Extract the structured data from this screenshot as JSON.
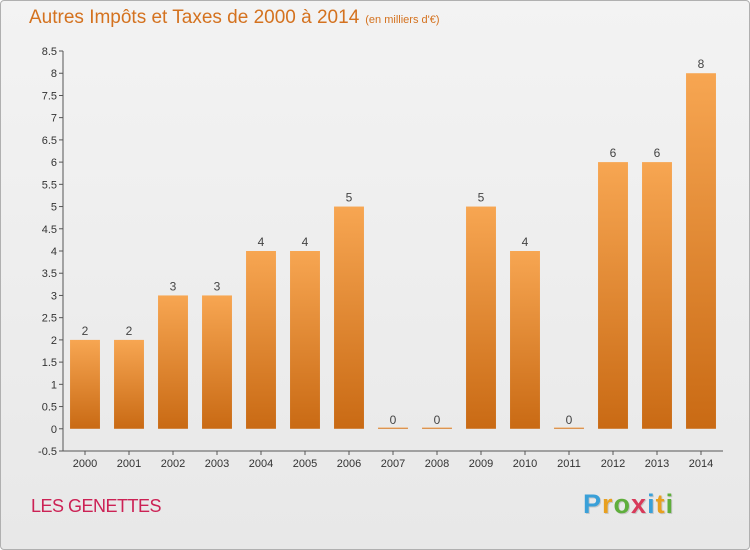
{
  "header": {
    "title": "Autres Impôts et Taxes de 2000 à 2014",
    "subtitle": "(en milliers d'€)"
  },
  "location": "LES GENETTES",
  "logo": {
    "letters": [
      "P",
      "r",
      "o",
      "x",
      "i",
      "t",
      "i"
    ],
    "colors": [
      "#3aa0d8",
      "#e8a020",
      "#5fae3c",
      "#d83a5a",
      "#3aa0d8",
      "#e8a020",
      "#5fae3c"
    ]
  },
  "colors": {
    "bar_top": "#f7a652",
    "bar_bottom": "#c96a14",
    "axis": "#555555",
    "grid": "#bbbbbb",
    "title": "#d4721f"
  },
  "chart_data": {
    "type": "bar",
    "title": "Autres Impôts et Taxes de 2000 à 2014",
    "categories": [
      "2000",
      "2001",
      "2002",
      "2003",
      "2004",
      "2005",
      "2006",
      "2007",
      "2008",
      "2009",
      "2010",
      "2011",
      "2012",
      "2013",
      "2014"
    ],
    "values": [
      2,
      2,
      3,
      3,
      4,
      4,
      5,
      0,
      0,
      5,
      4,
      0,
      6,
      6,
      8
    ],
    "data_labels": [
      "2",
      "2",
      "3",
      "3",
      "4",
      "4",
      "5",
      "0",
      "0",
      "5",
      "4",
      "0",
      "6",
      "6",
      "8"
    ],
    "yticks": [
      "-0.5",
      "0",
      "0.5",
      "1",
      "1.5",
      "2",
      "2.5",
      "3",
      "3.5",
      "4",
      "4.5",
      "5",
      "5.5",
      "6",
      "6.5",
      "7",
      "7.5",
      "8",
      "8.5"
    ],
    "ylim": [
      -0.5,
      8.5
    ],
    "xlabel": "",
    "ylabel": "",
    "grid": false,
    "legend": "none"
  }
}
